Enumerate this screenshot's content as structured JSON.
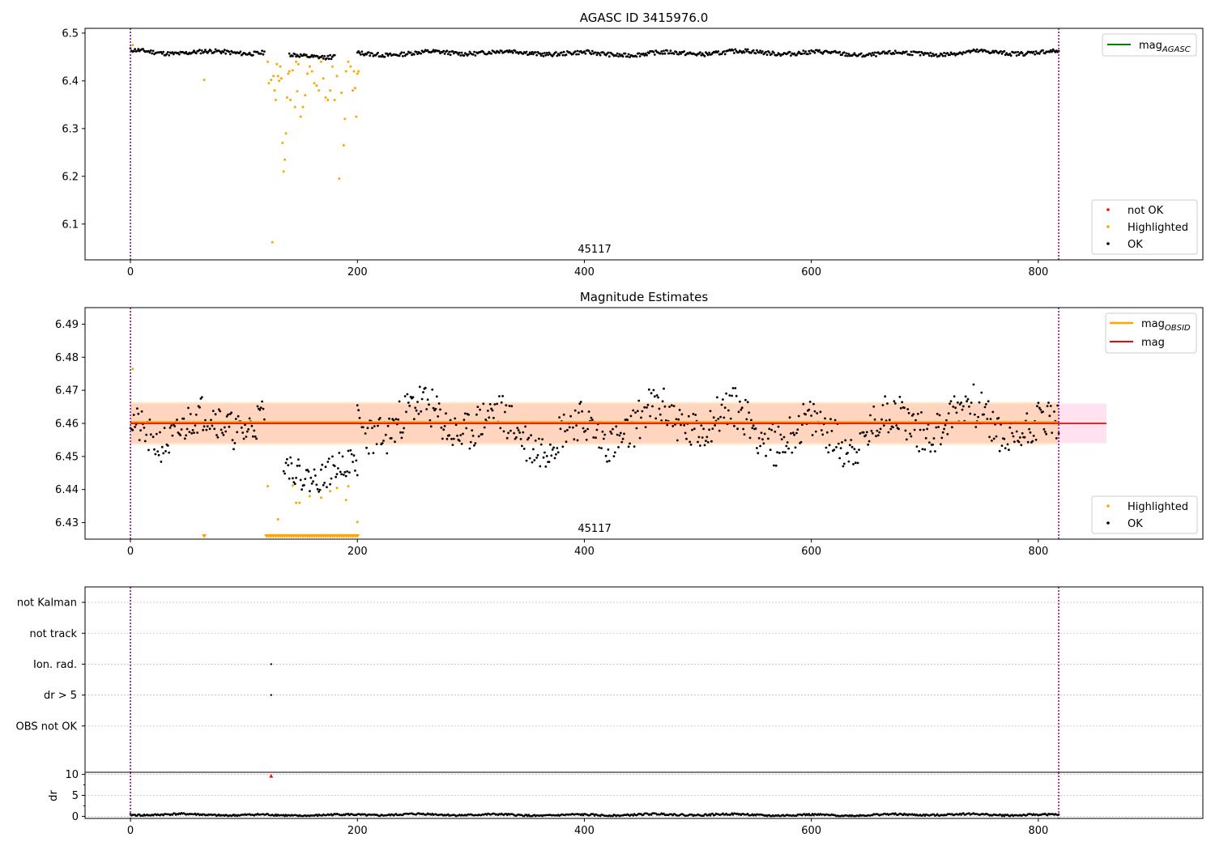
{
  "figure": {
    "subplot1_title": "AGASC ID 3415976.0",
    "subplot2_title": "Magnitude Estimates",
    "obsid_label": "45117"
  },
  "colors": {
    "ok": "#000000",
    "highlighted": "#ffa500",
    "not_ok": "#ff0000",
    "agasc_line": "#008000",
    "mag_line": "#ff0000",
    "mag_obsid_line": "#ffa500",
    "obs_boundary": "#800080",
    "band_obsid": "#ffa500",
    "band_mag": "#ff69b4"
  },
  "chart_data": [
    {
      "type": "scatter",
      "title": "AGASC ID 3415976.0",
      "xlim": [
        -40,
        945
      ],
      "ylim": [
        6.025,
        6.51
      ],
      "xticks": [
        0,
        200,
        400,
        600,
        800
      ],
      "yticks": [
        6.1,
        6.2,
        6.3,
        6.4,
        6.5
      ],
      "grid": false,
      "legend_upper": {
        "position": "top-right",
        "entries": [
          "mag_{AGASC}"
        ]
      },
      "legend_lower": {
        "position": "bottom-right",
        "entries": [
          "not OK",
          "Highlighted",
          "OK"
        ]
      },
      "obs_boundaries": [
        0,
        818
      ],
      "annotation": {
        "text": "45117",
        "x": 409
      },
      "series": [
        {
          "name": "OK",
          "kind": "noisy-track",
          "segments": [
            {
              "x": [
                0,
                118
              ],
              "base": 6.461,
              "amp": 0.006,
              "seed": 11
            },
            {
              "x": [
                140,
                180
              ],
              "base": 6.451,
              "amp": 0.006,
              "seed": 12
            },
            {
              "x": [
                200,
                818
              ],
              "base": 6.458,
              "amp": 0.006,
              "seed": 13
            }
          ]
        },
        {
          "name": "Highlighted",
          "points": [
            [
              2,
              6.475
            ],
            [
              65,
              6.402
            ],
            [
              121,
              6.44
            ],
            [
              122,
              6.395
            ],
            [
              124,
              6.402
            ],
            [
              125,
              6.062
            ],
            [
              126,
              6.41
            ],
            [
              127,
              6.38
            ],
            [
              128,
              6.36
            ],
            [
              129,
              6.435
            ],
            [
              130,
              6.41
            ],
            [
              131,
              6.4
            ],
            [
              132,
              6.43
            ],
            [
              133,
              6.405
            ],
            [
              134,
              6.27
            ],
            [
              135,
              6.21
            ],
            [
              136,
              6.235
            ],
            [
              137,
              6.29
            ],
            [
              138,
              6.365
            ],
            [
              139,
              6.415
            ],
            [
              140,
              6.42
            ],
            [
              141,
              6.36
            ],
            [
              143,
              6.422
            ],
            [
              145,
              6.345
            ],
            [
              146,
              6.44
            ],
            [
              147,
              6.378
            ],
            [
              148,
              6.435
            ],
            [
              150,
              6.325
            ],
            [
              152,
              6.345
            ],
            [
              154,
              6.37
            ],
            [
              156,
              6.415
            ],
            [
              158,
              6.43
            ],
            [
              160,
              6.42
            ],
            [
              162,
              6.395
            ],
            [
              164,
              6.39
            ],
            [
              166,
              6.38
            ],
            [
              168,
              6.44
            ],
            [
              170,
              6.405
            ],
            [
              172,
              6.365
            ],
            [
              174,
              6.36
            ],
            [
              176,
              6.38
            ],
            [
              178,
              6.43
            ],
            [
              180,
              6.36
            ],
            [
              182,
              6.41
            ],
            [
              184,
              6.195
            ],
            [
              186,
              6.375
            ],
            [
              188,
              6.265
            ],
            [
              189,
              6.32
            ],
            [
              190,
              6.42
            ],
            [
              192,
              6.44
            ],
            [
              194,
              6.43
            ],
            [
              196,
              6.38
            ],
            [
              197,
              6.42
            ],
            [
              198,
              6.385
            ],
            [
              199,
              6.325
            ],
            [
              200,
              6.415
            ],
            [
              201,
              6.42
            ]
          ]
        },
        {
          "name": "mag_{AGASC}",
          "kind": "legend-only"
        }
      ]
    },
    {
      "type": "scatter",
      "title": "Magnitude Estimates",
      "xlim": [
        -40,
        945
      ],
      "ylim": [
        6.425,
        6.495
      ],
      "xticks": [
        0,
        200,
        400,
        600,
        800
      ],
      "yticks": [
        6.43,
        6.44,
        6.45,
        6.46,
        6.47,
        6.48,
        6.49
      ],
      "grid": false,
      "legend_upper": {
        "position": "top-right",
        "entries": [
          "mag_{OBSID}",
          "mag"
        ]
      },
      "legend_lower": {
        "position": "bottom-right",
        "entries": [
          "Highlighted",
          "OK"
        ]
      },
      "obs_boundaries": [
        0,
        818
      ],
      "annotation": {
        "text": "45117",
        "x": 409
      },
      "mag": {
        "value": 6.46,
        "band": [
          6.454,
          6.466
        ],
        "x": [
          0,
          860
        ]
      },
      "mag_obsid": {
        "value": 6.4603,
        "band": [
          6.4535,
          6.4665
        ],
        "x": [
          0,
          818
        ]
      },
      "series": [
        {
          "name": "OK",
          "kind": "noisy-track",
          "segments": [
            {
              "x": [
                0,
                118
              ],
              "base": 6.46,
              "amp": 0.008,
              "seed": 21
            },
            {
              "x": [
                135,
                200
              ],
              "base": 6.447,
              "amp": 0.006,
              "seed": 22
            },
            {
              "x": [
                200,
                818
              ],
              "base": 6.459,
              "amp": 0.009,
              "seed": 23
            }
          ]
        },
        {
          "name": "Highlighted",
          "points": [
            [
              2,
              6.4765
            ],
            [
              65,
              6.426
            ],
            [
              121,
              6.441
            ],
            [
              130,
              6.431
            ],
            [
              143,
              6.4412
            ],
            [
              146,
              6.436
            ],
            [
              149,
              6.436
            ],
            [
              158,
              6.438
            ],
            [
              168,
              6.4375
            ],
            [
              176,
              6.4395
            ],
            [
              182,
              6.4405
            ],
            [
              190,
              6.4368
            ],
            [
              192,
              6.441
            ],
            [
              200,
              6.4302
            ]
          ],
          "floor_value": 6.426,
          "floor_x": [
            120,
            200
          ]
        }
      ]
    },
    {
      "type": "scatter",
      "title": "",
      "xlim": [
        -40,
        945
      ],
      "ylim": [
        -0.5,
        5.5
      ],
      "xticks": [
        0,
        200,
        400,
        600,
        800
      ],
      "ytick_labels": [
        "not Kalman",
        "not track",
        "Ion. rad.",
        "dr > 5",
        "OBS not OK"
      ],
      "ytick_values": [
        5,
        4,
        3,
        2,
        1
      ],
      "grid": true,
      "obs_boundaries": [
        0,
        818
      ],
      "flags": [
        {
          "label": "Ion. rad.",
          "x": 124
        },
        {
          "label": "dr > 5",
          "x": 124
        }
      ]
    },
    {
      "type": "scatter",
      "title": "",
      "ylabel": "dr",
      "xlim": [
        -40,
        945
      ],
      "ylim": [
        -0.5,
        10.5
      ],
      "xticks": [
        0,
        200,
        400,
        600,
        800
      ],
      "yticks": [
        0,
        5,
        10
      ],
      "grid": true,
      "obs_boundaries": [
        0,
        818
      ],
      "series": [
        {
          "name": "OK",
          "kind": "noisy-track",
          "segments": [
            {
              "x": [
                0,
                818
              ],
              "base": 0.35,
              "amp": 0.3,
              "seed": 41
            }
          ]
        },
        {
          "name": "not OK",
          "points": [
            [
              124,
              9.6
            ]
          ]
        }
      ]
    }
  ]
}
